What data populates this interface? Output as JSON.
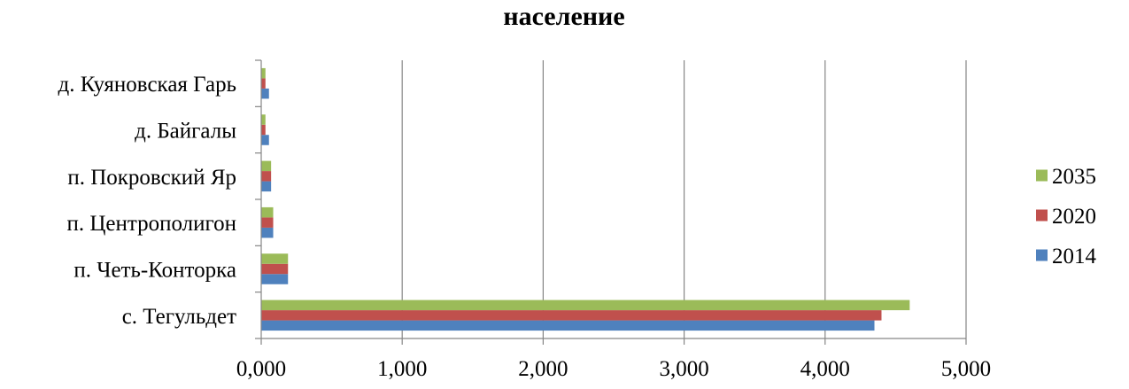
{
  "chart_data": {
    "type": "bar",
    "orientation": "horizontal",
    "title": "население",
    "xlabel": "",
    "ylabel": "",
    "categories": [
      "с. Тегульдет",
      "п. Четь-Конторка",
      "п. Центрополигон",
      "п. Покровский Яр",
      "д. Байгалы",
      "д. Куяновская Гарь"
    ],
    "series": [
      {
        "name": "2014",
        "color": "#4F81BD",
        "values": [
          4.35,
          0.19,
          0.085,
          0.07,
          0.055,
          0.055
        ]
      },
      {
        "name": "2020",
        "color": "#C0504D",
        "values": [
          4.4,
          0.19,
          0.085,
          0.07,
          0.03,
          0.03
        ]
      },
      {
        "name": "2035",
        "color": "#9BBB59",
        "values": [
          4.6,
          0.19,
          0.085,
          0.07,
          0.03,
          0.03
        ]
      }
    ],
    "xlim": [
      0,
      5
    ],
    "x_ticks": [
      0,
      1,
      2,
      3,
      4,
      5
    ],
    "x_tick_labels": [
      "0,000",
      "1,000",
      "2,000",
      "3,000",
      "4,000",
      "5,000"
    ],
    "grid": "vertical",
    "legend": {
      "placement": "right",
      "order": [
        "2035",
        "2020",
        "2014"
      ]
    }
  }
}
